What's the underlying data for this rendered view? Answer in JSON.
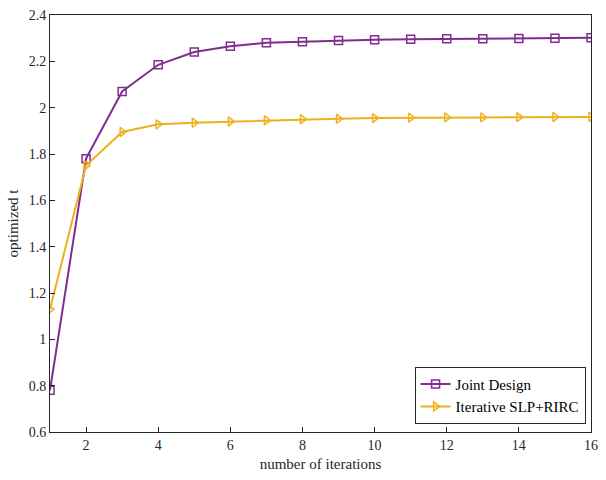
{
  "chart_data": {
    "type": "line",
    "xlabel": "number of iterations",
    "ylabel": "optimized t",
    "x": [
      1,
      2,
      3,
      4,
      5,
      6,
      7,
      8,
      9,
      10,
      11,
      12,
      13,
      14,
      15,
      16
    ],
    "series": [
      {
        "name": "Joint Design",
        "color": "#7e2f8e",
        "marker": "square",
        "values": [
          0.78,
          1.78,
          2.07,
          2.185,
          2.24,
          2.265,
          2.28,
          2.285,
          2.29,
          2.293,
          2.295,
          2.297,
          2.298,
          2.299,
          2.3,
          2.302
        ]
      },
      {
        "name": "Iterative SLP+RIRC",
        "color": "#edb120",
        "marker": "triangle-right",
        "values": [
          1.13,
          1.75,
          1.895,
          1.928,
          1.935,
          1.94,
          1.945,
          1.95,
          1.952,
          1.955,
          1.957,
          1.958,
          1.958,
          1.959,
          1.96,
          1.96
        ]
      }
    ],
    "xlim": [
      1,
      16
    ],
    "ylim": [
      0.6,
      2.4
    ],
    "xticks": [
      2,
      4,
      6,
      8,
      10,
      12,
      14,
      16
    ],
    "yticks": [
      0.6,
      0.8,
      1,
      1.2,
      1.4,
      1.6,
      1.8,
      2,
      2.2,
      2.4
    ],
    "grid": false,
    "legend": "lower right"
  }
}
